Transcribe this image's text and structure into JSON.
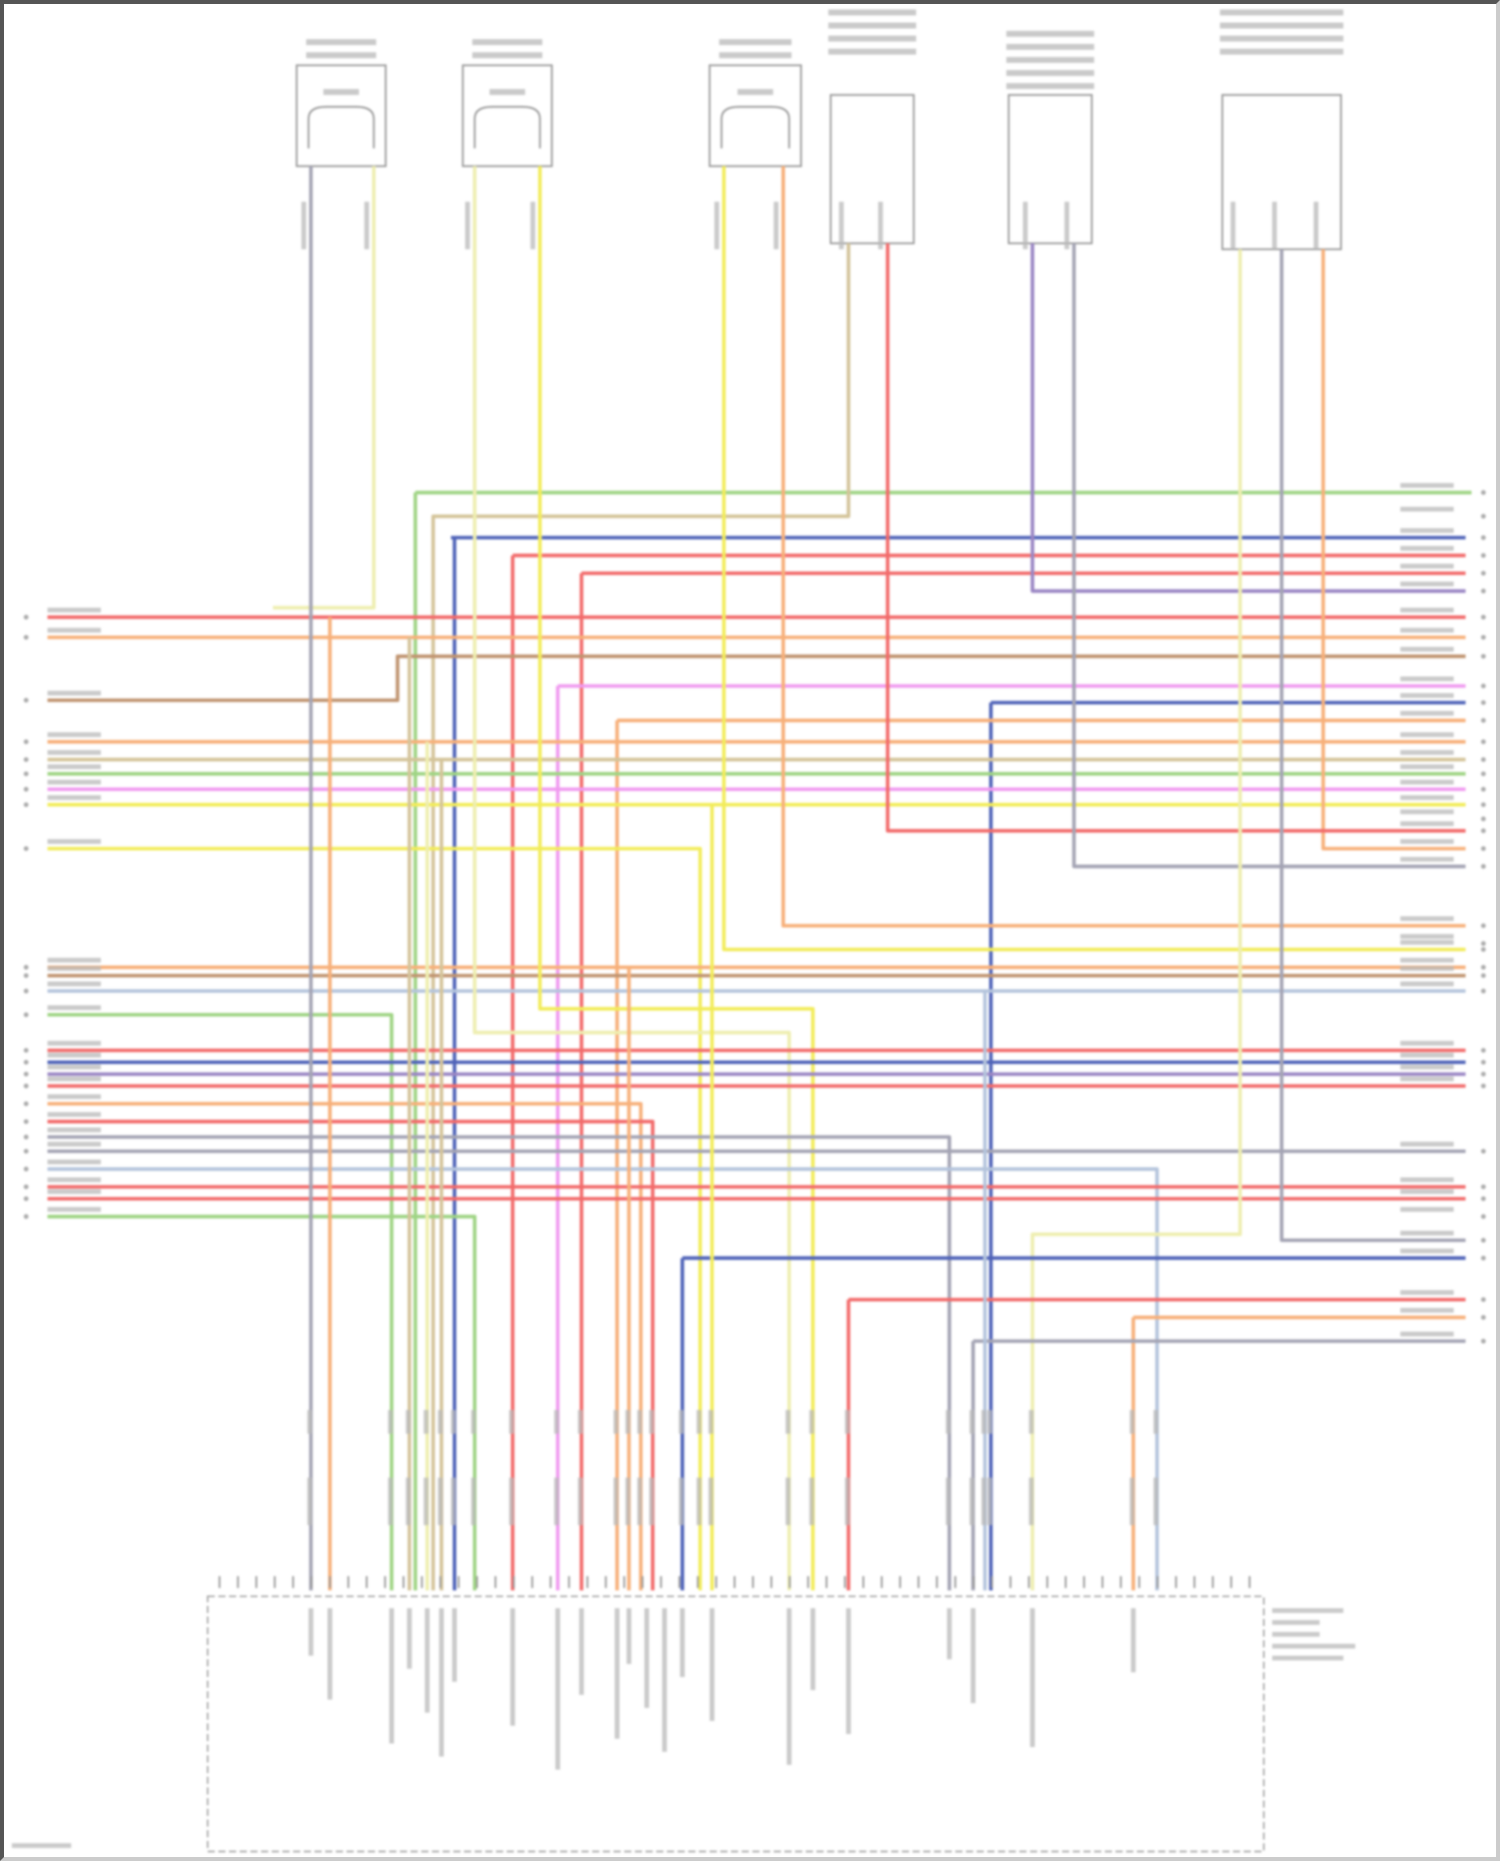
{
  "diagram": {
    "type": "wiring-diagram",
    "wire_colors": {
      "red": "#f26b6b",
      "orange": "#f7b07a",
      "yellow": "#f2ec5a",
      "light_yellow": "#eeeeb0",
      "blue": "#4f63b8",
      "violet": "#9a86c4",
      "pink": "#f09af0",
      "gray": "#a4a4b4",
      "green": "#9fd484",
      "tan": "#d4c49a",
      "brown": "#c09470",
      "light_blue": "#b4c4dc"
    },
    "outline_color": "#9a9a9a"
  }
}
